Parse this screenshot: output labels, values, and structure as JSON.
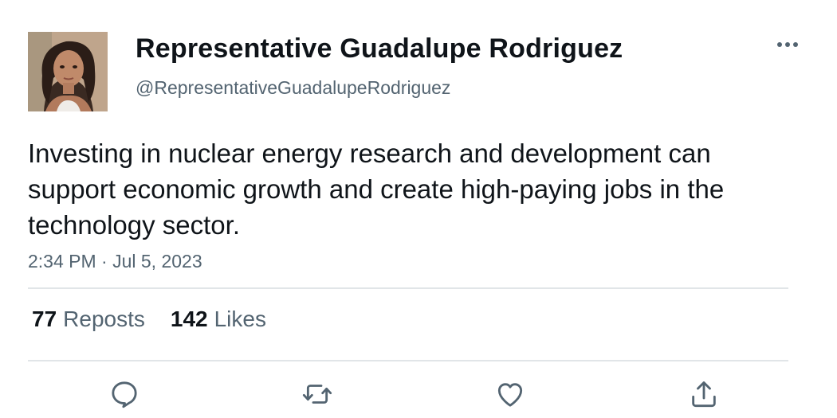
{
  "author": {
    "display_name": "Representative Guadalupe Rodriguez",
    "handle": "@RepresentativeGuadalupeRodriguez",
    "avatar_icon": "profile-photo"
  },
  "tweet": {
    "text": "Investing in nuclear energy research and development can support economic growth and create high-paying jobs in the technology sector.",
    "timestamp": "2:34 PM · Jul 5, 2023"
  },
  "stats": {
    "reposts_count": "77",
    "reposts_label": "Reposts",
    "likes_count": "142",
    "likes_label": "Likes"
  },
  "actions": {
    "reply_icon": "reply-icon",
    "repost_icon": "repost-icon",
    "like_icon": "like-icon",
    "share_icon": "share-icon",
    "more_icon": "more-icon"
  },
  "colors": {
    "text_primary": "#0f1419",
    "text_secondary": "#536471",
    "divider": "#e1e5e8"
  }
}
